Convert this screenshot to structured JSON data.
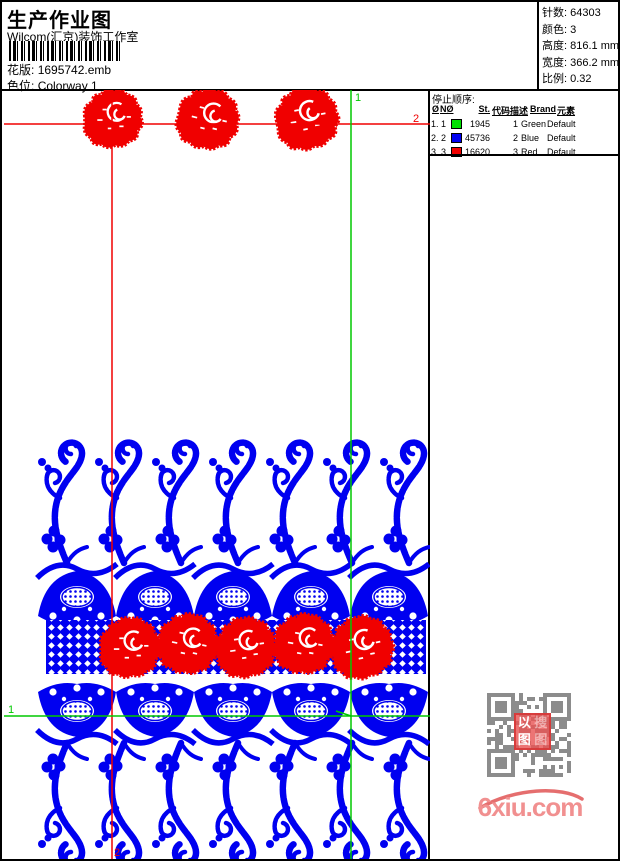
{
  "header": {
    "title": "生产作业图",
    "studio": "Wilcom(汇京)装饰工作室",
    "pattern_label": "花版:",
    "pattern_value": "1695742.emb",
    "colorway_label": "色位:",
    "colorway_value": "Colorway 1"
  },
  "info": {
    "rows": [
      {
        "label": "针数:",
        "value": "64303"
      },
      {
        "label": "颜色:",
        "value": "3"
      },
      {
        "label": "高度:",
        "value": "816.1 mm"
      },
      {
        "label": "宽度:",
        "value": "366.2 mm"
      },
      {
        "label": "比例:",
        "value": "0.32"
      }
    ]
  },
  "stop_sequence": {
    "title": "停止顺序:",
    "columns": [
      "Ø",
      "NØ",
      "St.",
      "代码",
      "描述",
      "Brand",
      "元素"
    ],
    "rows": [
      {
        "index": "1.",
        "needle": "1",
        "swatch": "#00e000",
        "stitches": "1945",
        "code": "1",
        "description": "Green",
        "brand": "Default",
        "element": ""
      },
      {
        "index": "2.",
        "needle": "2",
        "swatch": "#0000f0",
        "stitches": "45736",
        "code": "2",
        "description": "Blue",
        "brand": "Default",
        "element": ""
      },
      {
        "index": "3.",
        "needle": "3",
        "swatch": "#f00000",
        "stitches": "16620",
        "code": "3",
        "description": "Red",
        "brand": "Default",
        "element": ""
      }
    ]
  },
  "guides": {
    "green_label": "1",
    "red_label": "2"
  },
  "watermark": {
    "site": "6xiu.com",
    "stamp_chars": [
      "以",
      "搜",
      "图",
      "图"
    ]
  },
  "colors": {
    "design_blue": "#0000f0",
    "design_red": "#f00000",
    "guide_green": "#00c800",
    "guide_red": "#f00000",
    "qr_gray": "#8c8c8c"
  }
}
